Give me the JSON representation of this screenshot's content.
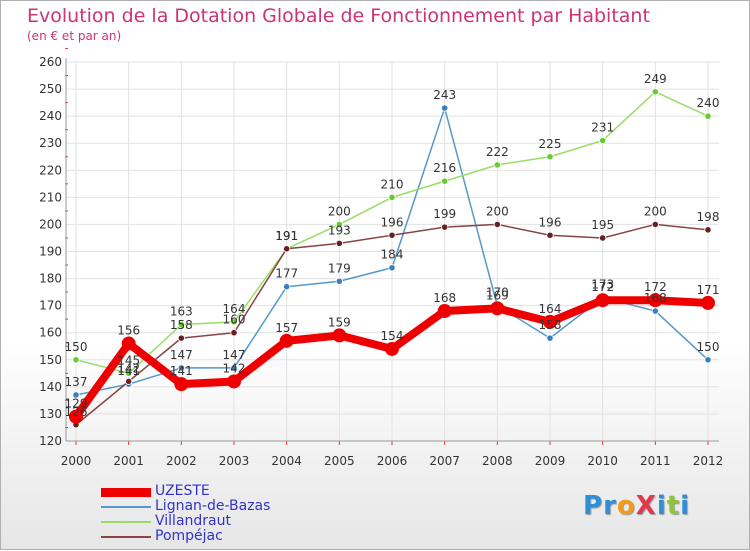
{
  "header": {
    "title": "Evolution de la Dotation Globale de Fonctionnement par Habitant",
    "subtitle": "(en € et par an)"
  },
  "logo": {
    "text": "ProXiti",
    "letters": [
      "P",
      "r",
      "o",
      "X",
      "i",
      "t",
      "i"
    ],
    "colors": [
      "#2e8ed6",
      "#2e8ed6",
      "#f29a1d",
      "#e2384d",
      "#2e8ed6",
      "#8ec43a",
      "#2e8ed6"
    ]
  },
  "chart_data": {
    "type": "line",
    "title": "Evolution de la Dotation Globale de Fonctionnement par Habitant",
    "subtitle": "(en € et par an)",
    "xlabel": "",
    "ylabel": "",
    "categories": [
      "2000",
      "2001",
      "2002",
      "2003",
      "2004",
      "2005",
      "2006",
      "2007",
      "2008",
      "2009",
      "2010",
      "2011",
      "2012"
    ],
    "ylim": [
      120,
      260
    ],
    "yticks": [
      120,
      130,
      140,
      150,
      160,
      170,
      180,
      190,
      200,
      210,
      220,
      230,
      240,
      250,
      260
    ],
    "grid": true,
    "legend_position": "bottom-left",
    "series": [
      {
        "name": "Lignan-de-Bazas",
        "color": "#5599cc",
        "marker_color": "#3a7fc0",
        "values": [
          137,
          141,
          147,
          147,
          177,
          179,
          184,
          243,
          170,
          158,
          173,
          168,
          150
        ],
        "labels": [
          "137",
          "141",
          "147",
          "147",
          "177",
          "179",
          "184",
          "243",
          "170",
          "158",
          "173",
          "168",
          "150"
        ]
      },
      {
        "name": "Villandraut",
        "color": "#99dd66",
        "marker_color": "#66cc33",
        "values": [
          150,
          145,
          163,
          164,
          191,
          200,
          210,
          216,
          222,
          225,
          231,
          249,
          240
        ],
        "labels": [
          "150",
          "145",
          "163",
          "164",
          "191",
          "200",
          "210",
          "216",
          "222",
          "225",
          "231",
          "249",
          "240"
        ]
      },
      {
        "name": "Pompéjac",
        "color": "#884444",
        "marker_color": "#662222",
        "values": [
          126,
          142,
          158,
          160,
          191,
          193,
          196,
          199,
          200,
          196,
          195,
          200,
          198
        ],
        "labels": [
          "126",
          "142",
          "158",
          "160",
          "191",
          "193",
          "196",
          "199",
          "200",
          "196",
          "195",
          "200",
          "198"
        ]
      },
      {
        "name": "UZESTE",
        "color": "#ee0000",
        "marker_color": "#ee0000",
        "values": [
          129,
          156,
          141,
          142,
          157,
          159,
          154,
          168,
          169,
          164,
          172,
          172,
          171
        ],
        "labels": [
          "129",
          "156",
          "141",
          "142",
          "157",
          "159",
          "154",
          "168",
          "169",
          "164",
          "172",
          "172",
          "171"
        ]
      }
    ]
  }
}
